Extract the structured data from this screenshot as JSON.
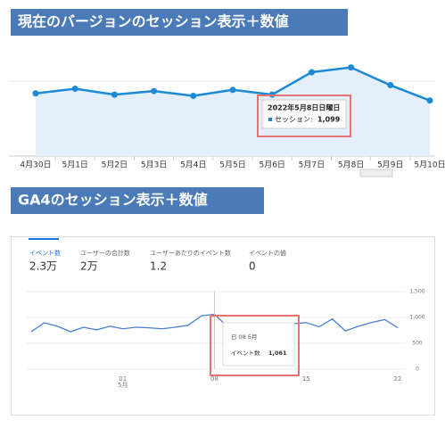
{
  "chart_data": [
    {
      "type": "line",
      "title": "現在のバージョンのセッション表示＋数値",
      "categories": [
        "4月30日",
        "5月1日",
        "5月2日",
        "5月3日",
        "5月4日",
        "5月5日",
        "5月6日",
        "5月7日",
        "5月8日",
        "5月9日",
        "5月10日"
      ],
      "series": [
        {
          "name": "セッション",
          "color": "#1c8ad6",
          "values": [
            777,
            835,
            762,
            806,
            747,
            821,
            762,
            1040,
            1099,
            879,
            689
          ]
        }
      ],
      "ylim": [
        0,
        1250
      ],
      "tooltip": {
        "title": "2022年5月8日日曜日",
        "label": "セッション:",
        "value": 1099,
        "value_label": "1,099"
      }
    },
    {
      "type": "line",
      "title": "GA4のセッション表示＋数値",
      "metrics": [
        {
          "name": "イベント数",
          "value": "2.3万"
        },
        {
          "name": "ユーザーの合計数",
          "value": "2万"
        },
        {
          "name": "ユーザーあたりのイベント数",
          "value": "1.2"
        },
        {
          "name": "イベントの値",
          "value": "0"
        }
      ],
      "categories": [
        null,
        null,
        null,
        null,
        null,
        null,
        null,
        "01",
        null,
        null,
        null,
        null,
        null,
        null,
        "08",
        null,
        null,
        null,
        null,
        null,
        null,
        "15",
        null,
        null,
        null,
        null,
        null,
        null,
        "22"
      ],
      "month_label": "5月",
      "series": [
        {
          "name": "イベント数",
          "color": "#4a7fd6",
          "values": [
            724,
            897,
            830,
            724,
            810,
            760,
            830,
            780,
            810,
            800,
            780,
            810,
            850,
            1030,
            1061,
            820,
            760,
            790,
            800,
            820,
            880,
            900,
            820,
            970,
            740,
            830,
            900,
            960,
            800
          ]
        }
      ],
      "ylim": [
        0,
        1500
      ],
      "yticks": [
        {
          "value": 1500,
          "label": "1,500"
        },
        {
          "value": 1000,
          "label": "1,000"
        },
        500,
        0
      ],
      "tooltip": {
        "title": "日 08 5月",
        "label": "イベント数",
        "value": 1061,
        "value_label": "1,061"
      }
    }
  ]
}
